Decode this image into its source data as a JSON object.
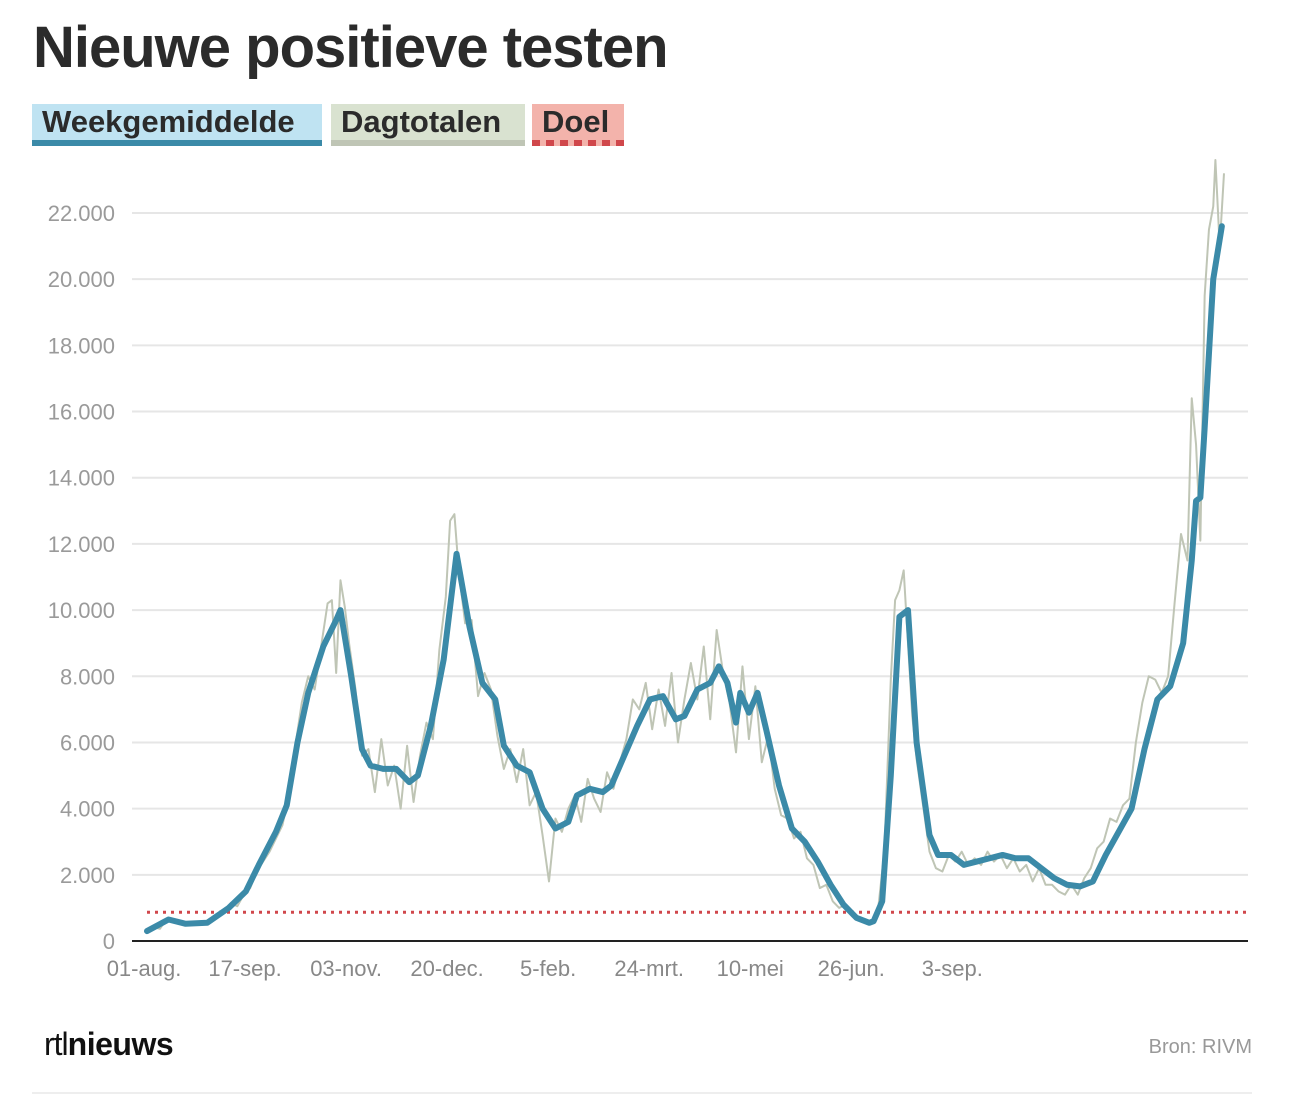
{
  "title": "Nieuwe positieve testen",
  "legend": [
    {
      "label": "Weekgemiddelde",
      "color": "#3b8aa8",
      "bg": "#bfe3f2"
    },
    {
      "label": "Dagtotalen",
      "color": "#bfc5b5",
      "bg": "#d9e2d0"
    },
    {
      "label": "Doel",
      "color": "#d0474b",
      "bg": "#f3b3ab"
    }
  ],
  "footer": {
    "logo_a": "rtl",
    "logo_b": "nieuws",
    "source": "Bron: RIVM"
  },
  "chart_data": {
    "type": "line",
    "x_unit": "days since 01-aug.",
    "ylim": [
      0,
      23500
    ],
    "y_ticks": [
      0,
      2000,
      4000,
      6000,
      8000,
      10000,
      12000,
      14000,
      16000,
      18000,
      20000,
      22000
    ],
    "y_tick_labels": [
      "0",
      "2.000",
      "4.000",
      "6.000",
      "8.000",
      "10.000",
      "12.000",
      "14.000",
      "16.000",
      "18.000",
      "20.000",
      "22.000"
    ],
    "x_ticks": [
      0,
      47,
      94,
      141,
      188,
      235,
      282,
      329,
      376
    ],
    "x_tick_labels": [
      "01-aug.",
      "17-sep.",
      "03-nov.",
      "20-dec.",
      "5-feb.",
      "24-mrt.",
      "10-mei",
      "26-jun.",
      "3-sep."
    ],
    "grid": true,
    "target": {
      "name": "Doel",
      "value": 870,
      "color": "#d0474b"
    },
    "series": [
      {
        "name": "Weekgemiddelde",
        "color": "#3b8aa8",
        "points": [
          [
            0,
            300
          ],
          [
            10,
            650
          ],
          [
            18,
            520
          ],
          [
            28,
            550
          ],
          [
            38,
            1000
          ],
          [
            46,
            1500
          ],
          [
            52,
            2300
          ],
          [
            60,
            3300
          ],
          [
            65,
            4100
          ],
          [
            70,
            6000
          ],
          [
            75,
            7500
          ],
          [
            82,
            8900
          ],
          [
            88,
            9700
          ],
          [
            90,
            10000
          ],
          [
            95,
            8000
          ],
          [
            100,
            5800
          ],
          [
            104,
            5300
          ],
          [
            110,
            5200
          ],
          [
            116,
            5200
          ],
          [
            122,
            4800
          ],
          [
            126,
            5000
          ],
          [
            132,
            6500
          ],
          [
            138,
            8500
          ],
          [
            144,
            11700
          ],
          [
            150,
            9500
          ],
          [
            156,
            7800
          ],
          [
            162,
            7300
          ],
          [
            166,
            5900
          ],
          [
            172,
            5300
          ],
          [
            178,
            5100
          ],
          [
            184,
            4000
          ],
          [
            190,
            3400
          ],
          [
            196,
            3600
          ],
          [
            200,
            4400
          ],
          [
            206,
            4600
          ],
          [
            212,
            4500
          ],
          [
            216,
            4700
          ],
          [
            222,
            5600
          ],
          [
            228,
            6500
          ],
          [
            234,
            7300
          ],
          [
            240,
            7400
          ],
          [
            246,
            6700
          ],
          [
            250,
            6800
          ],
          [
            256,
            7600
          ],
          [
            262,
            7800
          ],
          [
            266,
            8300
          ],
          [
            270,
            7800
          ],
          [
            274,
            6600
          ],
          [
            276,
            7500
          ],
          [
            280,
            6900
          ],
          [
            284,
            7500
          ],
          [
            288,
            6400
          ],
          [
            294,
            4700
          ],
          [
            300,
            3400
          ],
          [
            306,
            3000
          ],
          [
            312,
            2400
          ],
          [
            318,
            1700
          ],
          [
            324,
            1100
          ],
          [
            330,
            700
          ],
          [
            336,
            550
          ],
          [
            338,
            600
          ],
          [
            342,
            1200
          ],
          [
            346,
            5000
          ],
          [
            350,
            9800
          ],
          [
            354,
            10000
          ],
          [
            358,
            6000
          ],
          [
            364,
            3200
          ],
          [
            368,
            2600
          ],
          [
            374,
            2600
          ],
          [
            380,
            2300
          ],
          [
            386,
            2400
          ],
          [
            392,
            2500
          ],
          [
            398,
            2600
          ],
          [
            404,
            2500
          ],
          [
            410,
            2500
          ],
          [
            416,
            2200
          ],
          [
            422,
            1900
          ],
          [
            428,
            1700
          ],
          [
            434,
            1650
          ],
          [
            440,
            1800
          ],
          [
            446,
            2600
          ],
          [
            452,
            3300
          ],
          [
            458,
            4000
          ],
          [
            464,
            5800
          ],
          [
            470,
            7300
          ],
          [
            476,
            7700
          ],
          [
            482,
            9000
          ],
          [
            486,
            11500
          ],
          [
            488,
            13300
          ],
          [
            490,
            13400
          ],
          [
            492,
            15500
          ],
          [
            496,
            20000
          ],
          [
            500,
            21600
          ]
        ]
      },
      {
        "name": "Dagtotalen",
        "color": "#bfc5b5",
        "points": [
          [
            0,
            330
          ],
          [
            3,
            420
          ],
          [
            6,
            370
          ],
          [
            9,
            650
          ],
          [
            12,
            600
          ],
          [
            15,
            550
          ],
          [
            18,
            470
          ],
          [
            21,
            560
          ],
          [
            24,
            500
          ],
          [
            27,
            560
          ],
          [
            30,
            640
          ],
          [
            33,
            760
          ],
          [
            36,
            900
          ],
          [
            39,
            1150
          ],
          [
            42,
            1050
          ],
          [
            45,
            1400
          ],
          [
            48,
            1600
          ],
          [
            51,
            2100
          ],
          [
            54,
            2400
          ],
          [
            57,
            2700
          ],
          [
            60,
            3100
          ],
          [
            63,
            3500
          ],
          [
            66,
            4400
          ],
          [
            69,
            5900
          ],
          [
            72,
            7200
          ],
          [
            75,
            8000
          ],
          [
            78,
            7600
          ],
          [
            81,
            8900
          ],
          [
            84,
            10200
          ],
          [
            86,
            10300
          ],
          [
            88,
            8100
          ],
          [
            90,
            10900
          ],
          [
            92,
            10100
          ],
          [
            94,
            9000
          ],
          [
            97,
            7600
          ],
          [
            100,
            5600
          ],
          [
            103,
            5800
          ],
          [
            106,
            4500
          ],
          [
            109,
            6100
          ],
          [
            112,
            4700
          ],
          [
            115,
            5300
          ],
          [
            118,
            4000
          ],
          [
            121,
            5900
          ],
          [
            124,
            4200
          ],
          [
            127,
            5600
          ],
          [
            130,
            6600
          ],
          [
            133,
            6100
          ],
          [
            136,
            8800
          ],
          [
            139,
            10400
          ],
          [
            141,
            12700
          ],
          [
            143,
            12900
          ],
          [
            145,
            11200
          ],
          [
            148,
            9600
          ],
          [
            151,
            9700
          ],
          [
            154,
            7400
          ],
          [
            157,
            8100
          ],
          [
            160,
            7600
          ],
          [
            163,
            6200
          ],
          [
            166,
            5200
          ],
          [
            169,
            5800
          ],
          [
            172,
            4800
          ],
          [
            175,
            5800
          ],
          [
            178,
            4100
          ],
          [
            181,
            4500
          ],
          [
            184,
            3200
          ],
          [
            187,
            1800
          ],
          [
            190,
            3700
          ],
          [
            193,
            3300
          ],
          [
            196,
            4000
          ],
          [
            199,
            4400
          ],
          [
            202,
            3600
          ],
          [
            205,
            4900
          ],
          [
            208,
            4300
          ],
          [
            211,
            3900
          ],
          [
            214,
            5100
          ],
          [
            217,
            4600
          ],
          [
            220,
            5400
          ],
          [
            223,
            6100
          ],
          [
            226,
            7300
          ],
          [
            229,
            7000
          ],
          [
            232,
            7800
          ],
          [
            235,
            6400
          ],
          [
            238,
            7600
          ],
          [
            241,
            6500
          ],
          [
            244,
            8100
          ],
          [
            247,
            6000
          ],
          [
            250,
            7300
          ],
          [
            253,
            8400
          ],
          [
            256,
            7300
          ],
          [
            259,
            8900
          ],
          [
            262,
            6700
          ],
          [
            265,
            9400
          ],
          [
            268,
            8100
          ],
          [
            271,
            7200
          ],
          [
            274,
            5700
          ],
          [
            277,
            8300
          ],
          [
            280,
            6100
          ],
          [
            283,
            7700
          ],
          [
            286,
            5400
          ],
          [
            289,
            6200
          ],
          [
            292,
            4600
          ],
          [
            295,
            3800
          ],
          [
            298,
            3700
          ],
          [
            301,
            3100
          ],
          [
            304,
            3300
          ],
          [
            307,
            2500
          ],
          [
            310,
            2300
          ],
          [
            313,
            1600
          ],
          [
            316,
            1700
          ],
          [
            319,
            1200
          ],
          [
            322,
            1000
          ],
          [
            325,
            1100
          ],
          [
            328,
            750
          ],
          [
            331,
            700
          ],
          [
            334,
            600
          ],
          [
            337,
            550
          ],
          [
            340,
            900
          ],
          [
            343,
            2700
          ],
          [
            346,
            7900
          ],
          [
            348,
            10300
          ],
          [
            350,
            10600
          ],
          [
            352,
            11200
          ],
          [
            354,
            9000
          ],
          [
            356,
            6800
          ],
          [
            358,
            5500
          ],
          [
            361,
            4100
          ],
          [
            364,
            2700
          ],
          [
            367,
            2200
          ],
          [
            370,
            2100
          ],
          [
            373,
            2600
          ],
          [
            376,
            2400
          ],
          [
            379,
            2700
          ],
          [
            382,
            2300
          ],
          [
            385,
            2500
          ],
          [
            388,
            2300
          ],
          [
            391,
            2700
          ],
          [
            394,
            2400
          ],
          [
            397,
            2600
          ],
          [
            400,
            2200
          ],
          [
            403,
            2500
          ],
          [
            406,
            2100
          ],
          [
            409,
            2300
          ],
          [
            412,
            1800
          ],
          [
            415,
            2200
          ],
          [
            418,
            1700
          ],
          [
            421,
            1700
          ],
          [
            424,
            1500
          ],
          [
            427,
            1400
          ],
          [
            430,
            1700
          ],
          [
            433,
            1400
          ],
          [
            436,
            1900
          ],
          [
            439,
            2200
          ],
          [
            442,
            2800
          ],
          [
            445,
            3000
          ],
          [
            448,
            3700
          ],
          [
            451,
            3600
          ],
          [
            454,
            4100
          ],
          [
            457,
            4300
          ],
          [
            460,
            6000
          ],
          [
            463,
            7200
          ],
          [
            466,
            8000
          ],
          [
            469,
            7900
          ],
          [
            472,
            7500
          ],
          [
            475,
            8000
          ],
          [
            478,
            10200
          ],
          [
            481,
            12300
          ],
          [
            484,
            11500
          ],
          [
            486,
            16400
          ],
          [
            488,
            15000
          ],
          [
            490,
            12100
          ],
          [
            492,
            19500
          ],
          [
            494,
            21500
          ],
          [
            496,
            22200
          ],
          [
            497,
            23600
          ],
          [
            499,
            21000
          ],
          [
            501,
            23200
          ]
        ]
      }
    ]
  }
}
